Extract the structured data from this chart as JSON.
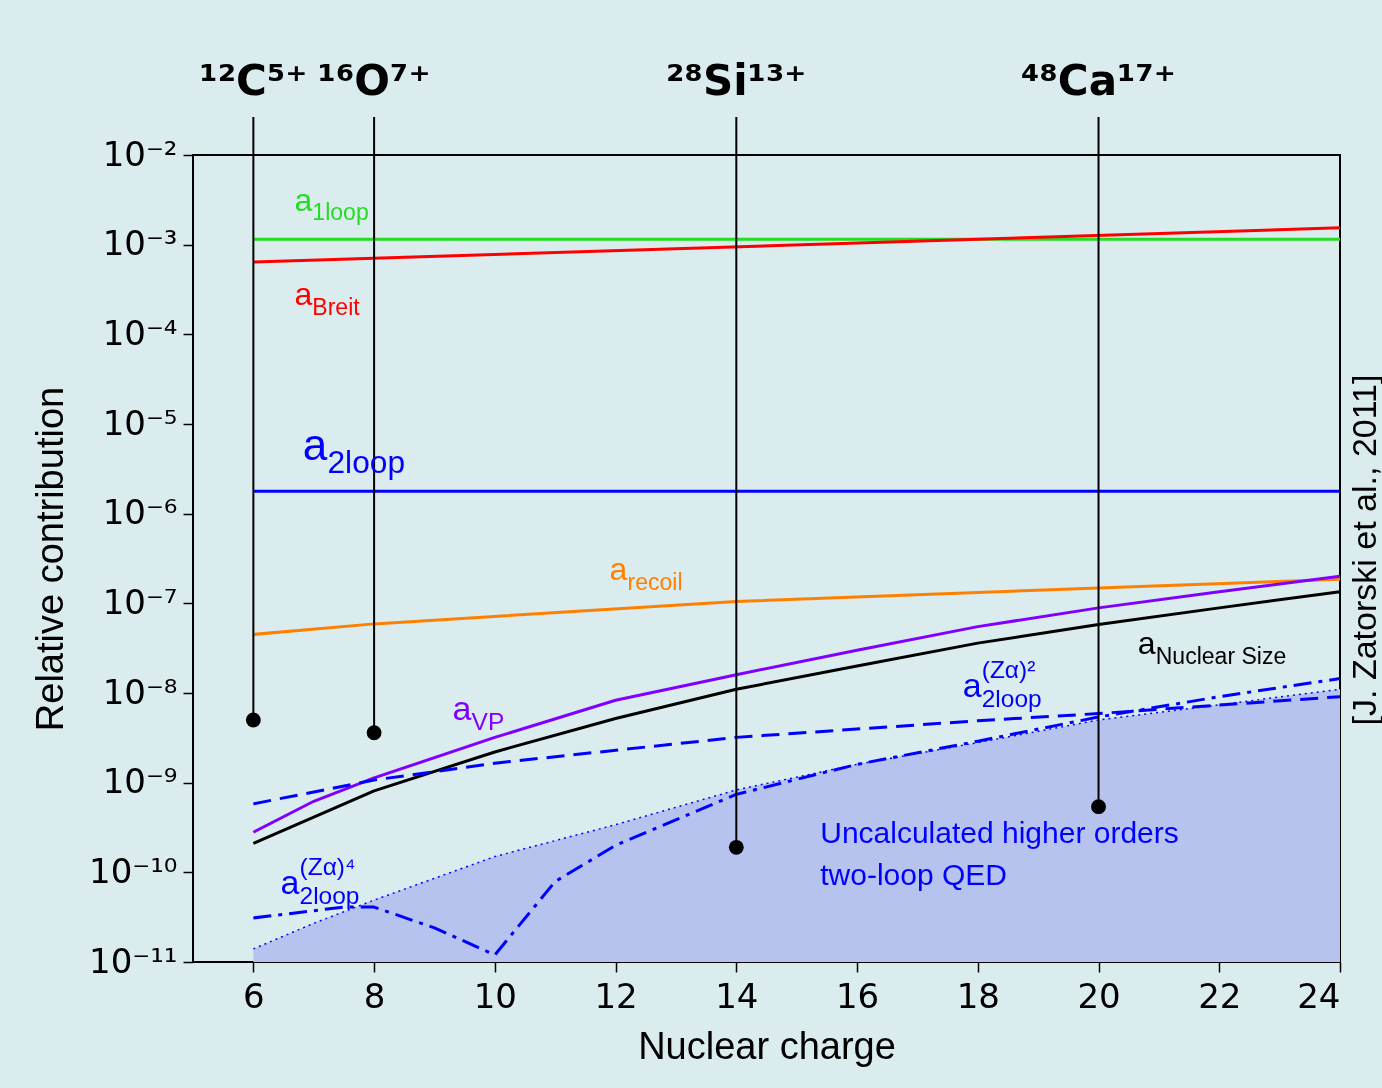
{
  "chart_data": {
    "type": "line",
    "xlabel": "Nuclear charge",
    "ylabel": "Relative contribution",
    "xlim": [
      5,
      24
    ],
    "xticks": [
      6,
      8,
      10,
      12,
      14,
      16,
      18,
      20,
      22,
      24
    ],
    "ylim": [
      1e-11,
      0.01
    ],
    "log": "y",
    "yticks": [
      {
        "value": 1e-11,
        "label": "10⁻¹¹"
      },
      {
        "value": 1e-10,
        "label": "10⁻¹⁰"
      },
      {
        "value": 1e-09,
        "label": "10⁻⁹"
      },
      {
        "value": 1e-08,
        "label": "10⁻⁸"
      },
      {
        "value": 1e-07,
        "label": "10⁻⁷"
      },
      {
        "value": 1e-06,
        "label": "10⁻⁶"
      },
      {
        "value": 1e-05,
        "label": "10⁻⁵"
      },
      {
        "value": 0.0001,
        "label": "10⁻⁴"
      },
      {
        "value": 0.001,
        "label": "10⁻³"
      },
      {
        "value": 0.01,
        "label": "10⁻²"
      }
    ],
    "grid": false,
    "marker": "none",
    "series": [
      {
        "type": "area",
        "color": "#b6c3ef",
        "line_style": "dotted",
        "x": [
          6,
          7,
          8,
          10,
          12,
          14,
          16,
          18,
          20,
          22,
          24
        ],
        "values": [
          1.4e-11,
          2.7e-11,
          4.9e-11,
          1.5e-10,
          3.4e-10,
          8.3e-10,
          1.6e-09,
          2.8e-09,
          5e-09,
          7.4e-09,
          1.1e-08
        ]
      },
      {
        "name": "a$_{1loop}$",
        "color": "#22dd22",
        "line_style": "solid",
        "x": [
          6,
          24
        ],
        "values": [
          0.00115,
          0.00115
        ]
      },
      {
        "name": "a$_{Breit}$",
        "color": "#ff0000",
        "line_style": "solid",
        "x": [
          6,
          24
        ],
        "values": [
          0.00064,
          0.00154
        ]
      },
      {
        "name": "a$_{2loop}$",
        "color": "#0000ff",
        "line_style": "solid",
        "x": [
          6,
          24
        ],
        "values": [
          1.78e-06,
          1.78e-06
        ]
      },
      {
        "name": "a$_{recoil}$",
        "color": "#ff8000",
        "line_style": "solid",
        "x": [
          6,
          8,
          14,
          20,
          24
        ],
        "values": [
          4.5e-08,
          5.9e-08,
          1.05e-07,
          1.48e-07,
          1.86e-07
        ]
      },
      {
        "name": "a$_{VP}$",
        "color": "#8000ff",
        "line_style": "solid",
        "x": [
          6,
          7,
          8,
          10,
          12,
          14,
          16,
          18,
          20,
          22,
          24
        ],
        "values": [
          2.8e-10,
          6.2e-10,
          1.13e-09,
          3.2e-09,
          8.3e-09,
          1.6e-08,
          3e-08,
          5.5e-08,
          8.9e-08,
          1.35e-07,
          2e-07
        ]
      },
      {
        "name": "a$_{Nuclear Size}$",
        "color": "#000000",
        "line_style": "solid",
        "x": [
          6,
          8,
          10,
          12,
          14,
          16,
          18,
          20,
          22,
          24
        ],
        "values": [
          2.1e-10,
          8.1e-10,
          2.2e-09,
          5.2e-09,
          1.1e-08,
          2e-08,
          3.6e-08,
          5.8e-08,
          8.9e-08,
          1.35e-07
        ]
      },
      {
        "name": "a$^{(Zα)²}$$_{2loop}$",
        "color": "#0000ff",
        "line_style": "dashed",
        "x": [
          6,
          8,
          10,
          14,
          18,
          20,
          24
        ],
        "values": [
          5.8e-10,
          1.07e-09,
          1.65e-09,
          3.2e-09,
          4.9e-09,
          5.9e-09,
          9.1e-09
        ]
      },
      {
        "name": "a$^{(Zα)⁴}$$_{2loop}$",
        "color": "#0000ff",
        "line_style": "dashdot",
        "x": [
          6,
          7.5,
          8,
          9,
          10,
          11,
          12,
          14,
          16,
          18,
          20,
          22,
          24
        ],
        "values": [
          3.1e-11,
          4.1e-11,
          4.1e-11,
          2.4e-11,
          1.2e-11,
          7.9e-11,
          2e-10,
          7.4e-10,
          1.6e-09,
          2.9e-09,
          5.4e-09,
          9.1e-09,
          1.45e-08
        ]
      },
      {
        "type": "scatter",
        "color": "#000000",
        "marker": "circle",
        "x": [
          6,
          8,
          14,
          20
        ],
        "values": [
          5e-09,
          3.6e-09,
          1.9e-10,
          5.4e-10
        ]
      }
    ],
    "ref_lines": [
      {
        "axis": "x",
        "value": 6,
        "label": "¹²C⁵⁺",
        "color": "#000000"
      },
      {
        "axis": "x",
        "value": 8,
        "label": "¹⁶O⁷⁺",
        "color": "#000000"
      },
      {
        "axis": "x",
        "value": 14,
        "label": "²⁸Si¹³⁺",
        "color": "#000000"
      },
      {
        "axis": "x",
        "value": 20,
        "label": "⁴⁸Ca¹⁷⁺",
        "color": "#000000"
      }
    ],
    "annotations": [
      "Uncalculated higher orders\ntwo-loop QED",
      "[J. Zatorski et al., 2011]"
    ]
  }
}
